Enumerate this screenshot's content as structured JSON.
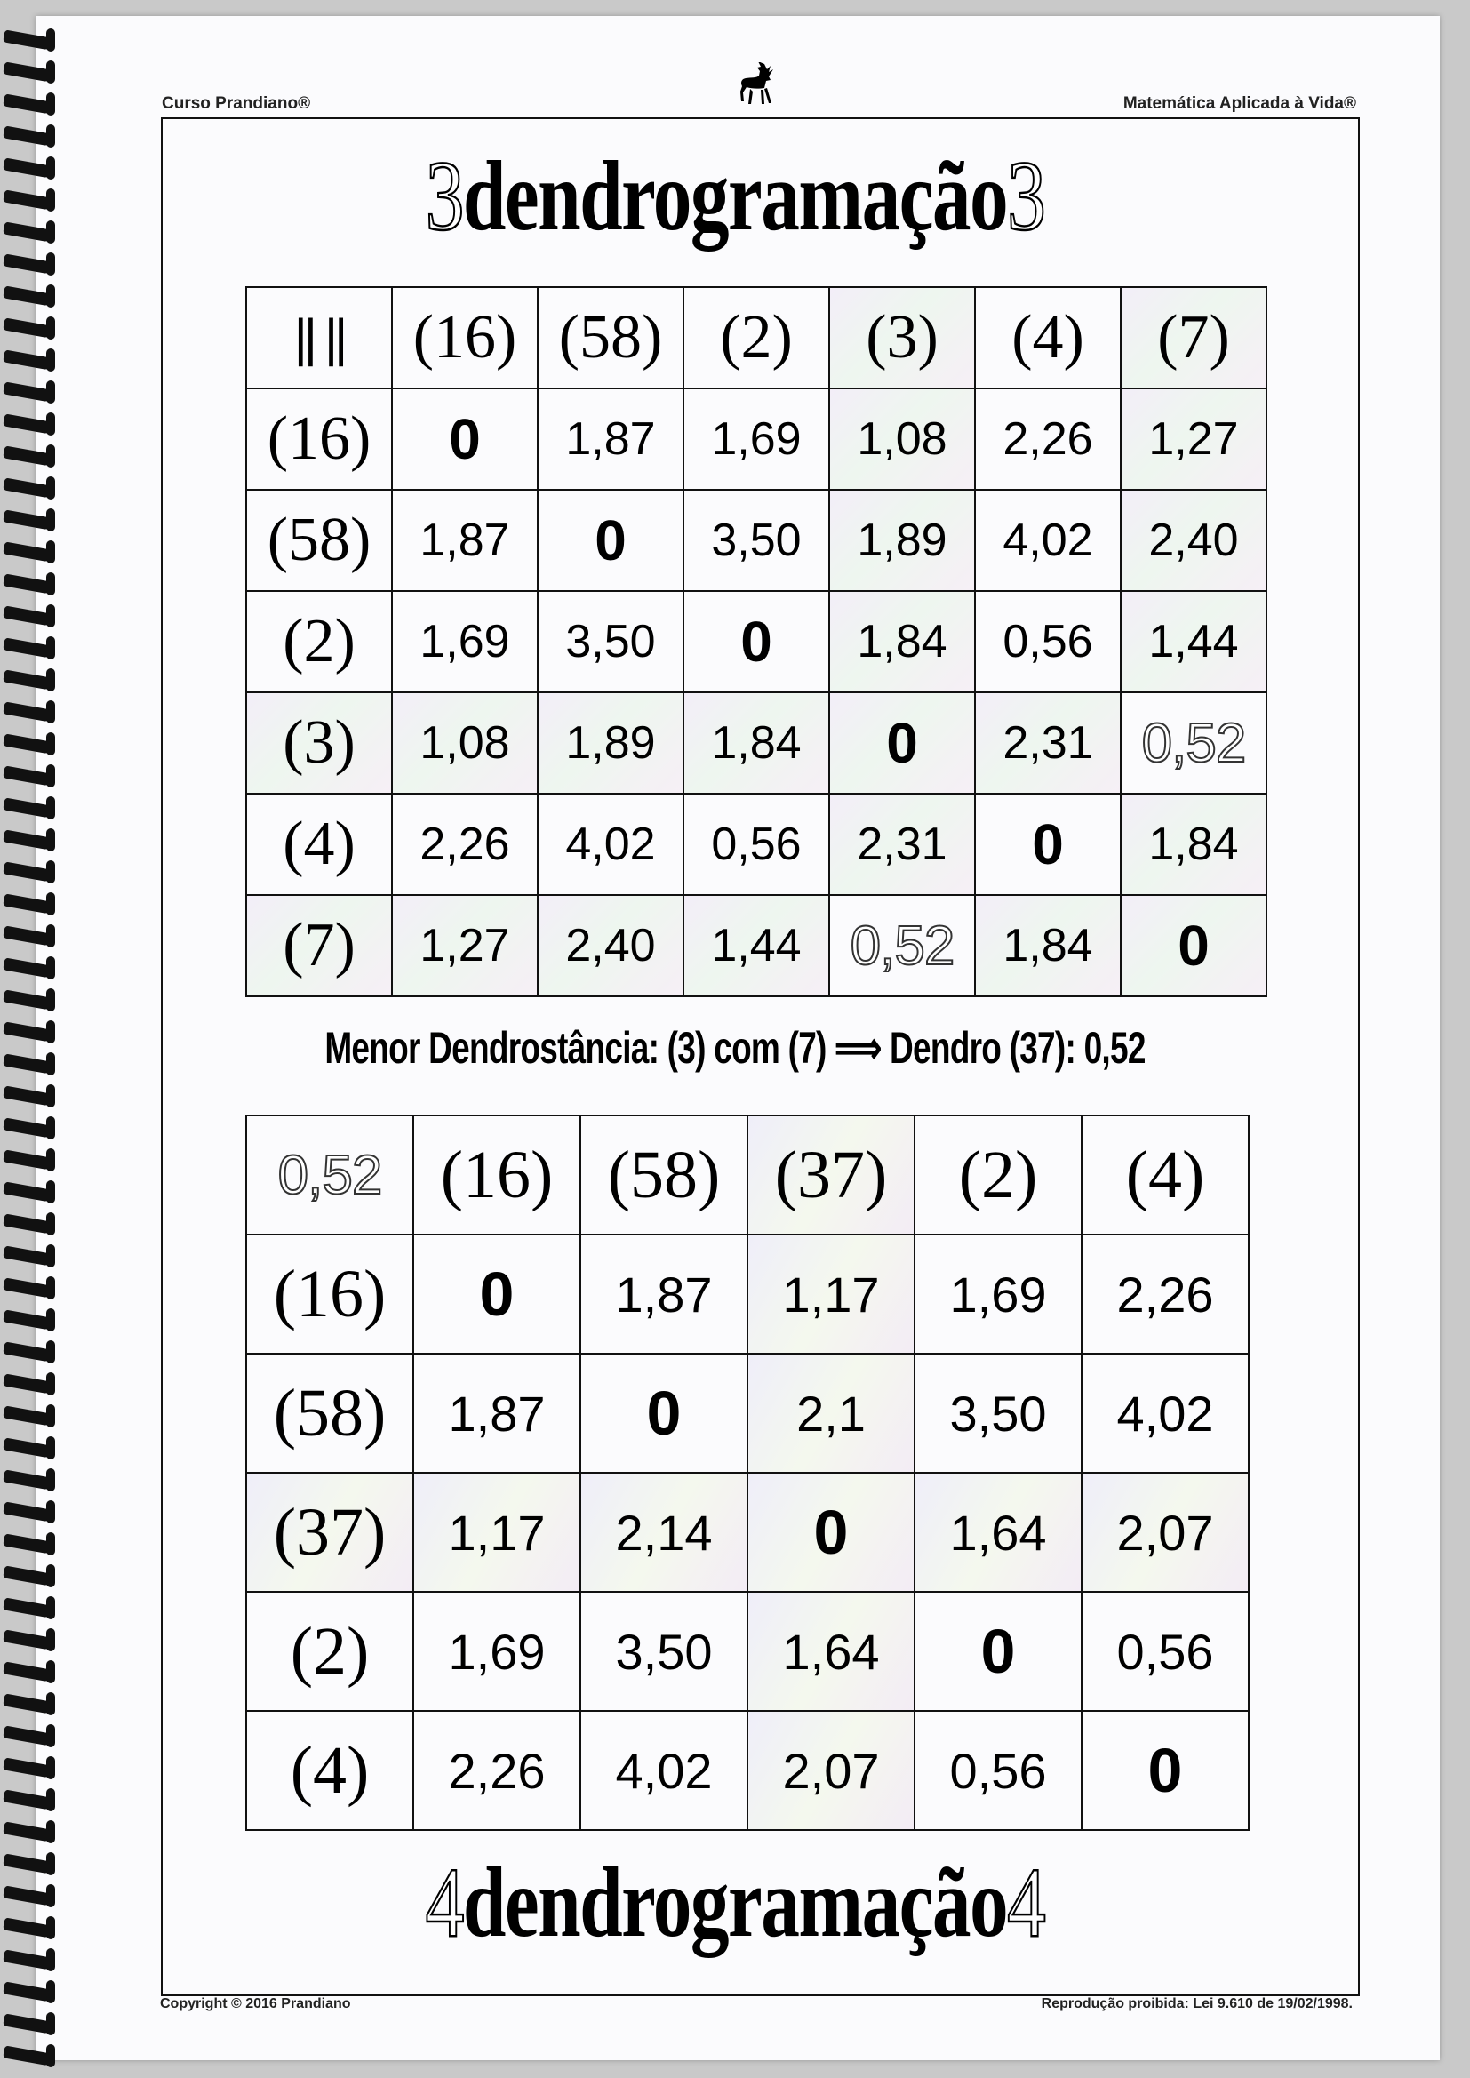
{
  "header": {
    "left": "Curso Prandiano®",
    "right": "Matemática Aplicada à Vida®"
  },
  "title_top": {
    "pre": "3",
    "word": "dendrogramação",
    "post": "3"
  },
  "table1": {
    "corner": "|| ||",
    "columns": [
      "(16)",
      "(58)",
      "(2)",
      "(3)",
      "(4)",
      "(7)"
    ],
    "rows": [
      {
        "label": "(16)",
        "cells": [
          "0",
          "1,87",
          "1,69",
          "1,08",
          "2,26",
          "1,27"
        ]
      },
      {
        "label": "(58)",
        "cells": [
          "1,87",
          "0",
          "3,50",
          "1,89",
          "4,02",
          "2,40"
        ]
      },
      {
        "label": "(2)",
        "cells": [
          "1,69",
          "3,50",
          "0",
          "1,84",
          "0,56",
          "1,44"
        ]
      },
      {
        "label": "(3)",
        "cells": [
          "1,08",
          "1,89",
          "1,84",
          "0",
          "2,31",
          "0,52"
        ]
      },
      {
        "label": "(4)",
        "cells": [
          "2,26",
          "4,02",
          "0,56",
          "2,31",
          "0",
          "1,84"
        ]
      },
      {
        "label": "(7)",
        "cells": [
          "1,27",
          "2,40",
          "1,44",
          "0,52",
          "1,84",
          "0"
        ]
      }
    ]
  },
  "middle": {
    "text": "Menor Dendrostância: (3) com (7)",
    "arrow": "⟹",
    "result": "Dendro (37): 0,52"
  },
  "table2": {
    "corner": "0,52",
    "columns": [
      "(16)",
      "(58)",
      "(37)",
      "(2)",
      "(4)"
    ],
    "rows": [
      {
        "label": "(16)",
        "cells": [
          "0",
          "1,87",
          "1,17",
          "1,69",
          "2,26"
        ]
      },
      {
        "label": "(58)",
        "cells": [
          "1,87",
          "0",
          "2,1",
          "3,50",
          "4,02"
        ]
      },
      {
        "label": "(37)",
        "cells": [
          "1,17",
          "2,14",
          "0",
          "1,64",
          "2,07"
        ]
      },
      {
        "label": "(2)",
        "cells": [
          "1,69",
          "3,50",
          "1,64",
          "0",
          "0,56"
        ]
      },
      {
        "label": "(4)",
        "cells": [
          "2,26",
          "4,02",
          "2,07",
          "0,56",
          "0"
        ]
      }
    ]
  },
  "title_bottom": {
    "pre": "4",
    "word": "dendrogramação",
    "post": "4"
  },
  "footer": {
    "left": "Copyright © 2016 Prandiano",
    "right": "Reprodução proibida: Lei 9.610 de 19/02/1998."
  },
  "icons": {
    "logo": "deer-icon"
  }
}
